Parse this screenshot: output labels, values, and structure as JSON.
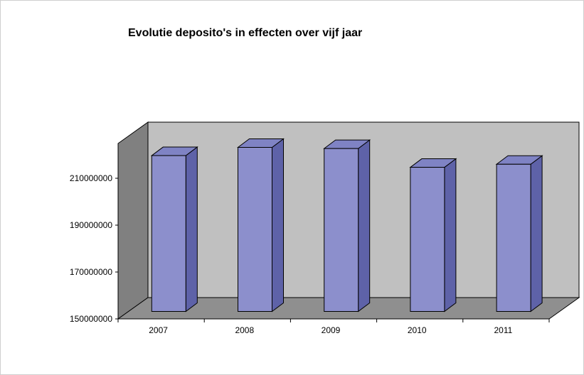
{
  "chart_data": {
    "type": "bar",
    "title": "Evolutie deposito's in effecten over vijf jaar",
    "xlabel": "",
    "ylabel": "",
    "categories": [
      "2007",
      "2008",
      "2009",
      "2010",
      "2011"
    ],
    "values": [
      216500000,
      220000000,
      219500000,
      211500000,
      212800000
    ],
    "ylim": [
      150000000,
      230000000
    ],
    "y_ticks": [
      "150000000",
      "170000000",
      "190000000",
      "210000000"
    ],
    "y_tick_values": [
      150000000,
      170000000,
      190000000,
      210000000
    ],
    "legend": "none",
    "colors": {
      "bar_front": "#8c8fcc",
      "bar_side": "#5e62a8",
      "bar_top": "#7f83c4",
      "back_wall": "#c0c0c0",
      "side_wall": "#808080",
      "floor": "#8f8f8f"
    }
  }
}
